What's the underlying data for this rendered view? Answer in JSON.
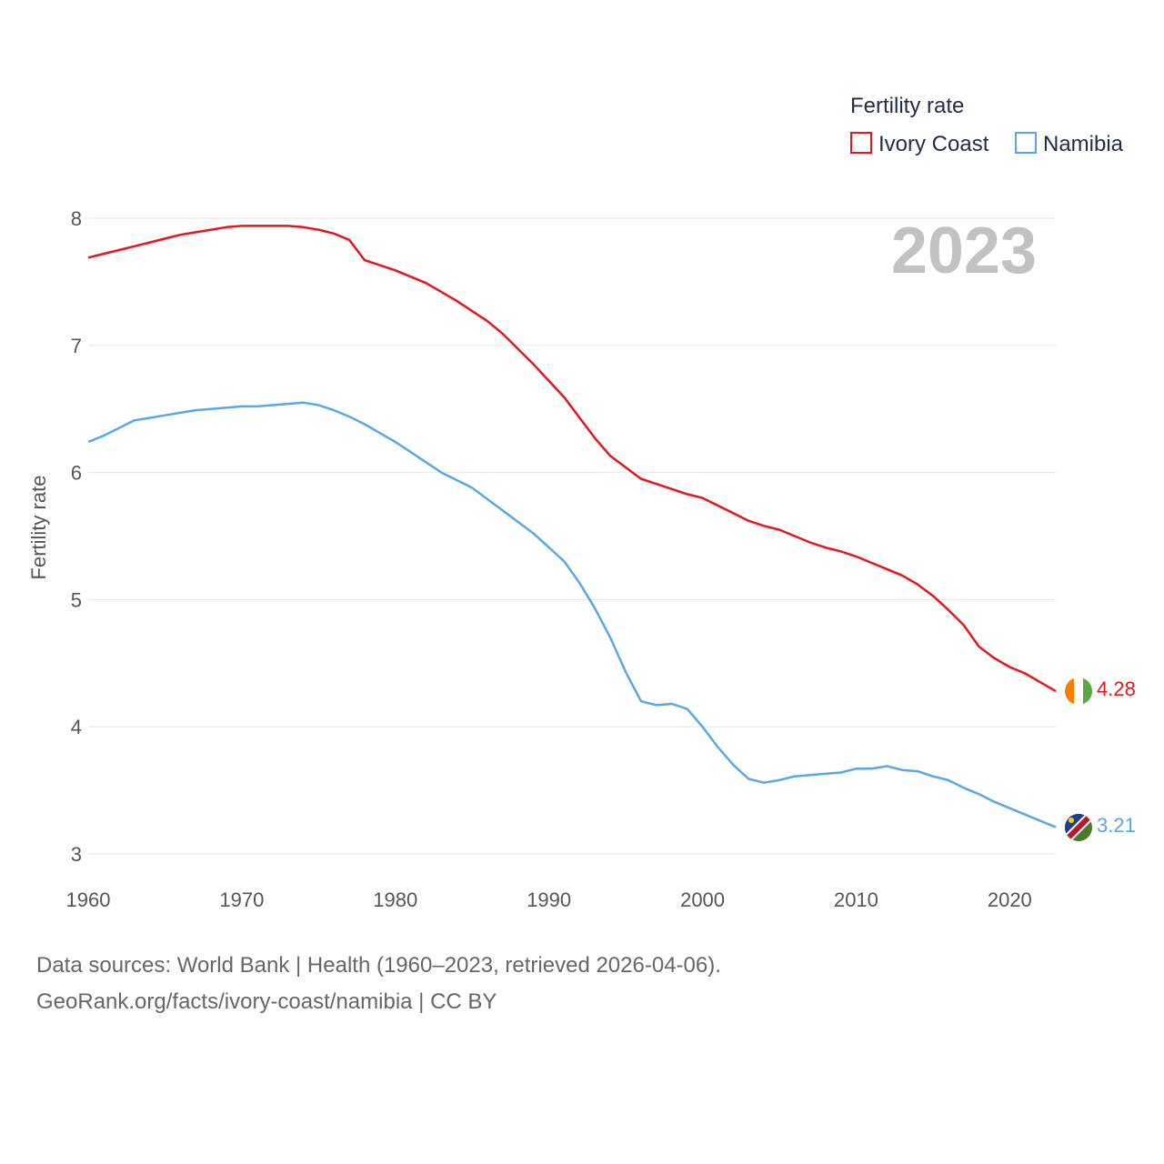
{
  "legend": {
    "title": "Fertility rate",
    "items": [
      {
        "label": "Ivory Coast",
        "color": "#e8161c"
      },
      {
        "label": "Namibia",
        "color": "#5aa7e6"
      }
    ]
  },
  "big_year": "2023",
  "end_labels": {
    "ivory_coast": "4.28",
    "namibia": "3.21"
  },
  "source": {
    "line1": "Data sources: World Bank | Health (1960–2023, retrieved 2026-04-06).",
    "line2": "GeoRank.org/facts/ivory-coast/namibia | CC BY"
  },
  "flags": {
    "ivory_coast": "ivory-coast-flag-icon",
    "namibia": "namibia-flag-icon"
  },
  "chart_data": {
    "type": "line",
    "title": "Fertility rate",
    "xlabel": "",
    "ylabel": "Fertility rate",
    "xlim": [
      1960,
      2023
    ],
    "ylim": [
      3,
      8
    ],
    "x_ticks": [
      1960,
      1970,
      1980,
      1990,
      2000,
      2010,
      2020
    ],
    "y_ticks": [
      3,
      4,
      5,
      6,
      7,
      8
    ],
    "grid": true,
    "legend_position": "top-right",
    "x": [
      1960,
      1961,
      1962,
      1963,
      1964,
      1965,
      1966,
      1967,
      1968,
      1969,
      1970,
      1971,
      1972,
      1973,
      1974,
      1975,
      1976,
      1977,
      1978,
      1979,
      1980,
      1981,
      1982,
      1983,
      1984,
      1985,
      1986,
      1987,
      1988,
      1989,
      1990,
      1991,
      1992,
      1993,
      1994,
      1995,
      1996,
      1997,
      1998,
      1999,
      2000,
      2001,
      2002,
      2003,
      2004,
      2005,
      2006,
      2007,
      2008,
      2009,
      2010,
      2011,
      2012,
      2013,
      2014,
      2015,
      2016,
      2017,
      2018,
      2019,
      2020,
      2021,
      2022,
      2023
    ],
    "series": [
      {
        "name": "Ivory Coast",
        "color": "#e8161c",
        "values": [
          7.69,
          7.72,
          7.75,
          7.78,
          7.81,
          7.84,
          7.87,
          7.89,
          7.91,
          7.93,
          7.94,
          7.94,
          7.94,
          7.94,
          7.93,
          7.91,
          7.88,
          7.83,
          7.67,
          7.63,
          7.59,
          7.54,
          7.49,
          7.42,
          7.35,
          7.27,
          7.19,
          7.09,
          6.97,
          6.85,
          6.72,
          6.59,
          6.43,
          6.27,
          6.13,
          6.04,
          5.95,
          5.91,
          5.87,
          5.83,
          5.8,
          5.74,
          5.68,
          5.62,
          5.58,
          5.55,
          5.5,
          5.45,
          5.41,
          5.38,
          5.34,
          5.29,
          5.24,
          5.19,
          5.12,
          5.03,
          4.92,
          4.8,
          4.63,
          4.54,
          4.47,
          4.42,
          4.35,
          4.28
        ]
      },
      {
        "name": "Namibia",
        "color": "#5aa7e6",
        "values": [
          6.24,
          6.29,
          6.35,
          6.41,
          6.43,
          6.45,
          6.47,
          6.49,
          6.5,
          6.51,
          6.52,
          6.52,
          6.53,
          6.54,
          6.55,
          6.53,
          6.49,
          6.44,
          6.38,
          6.31,
          6.24,
          6.16,
          6.08,
          6.0,
          5.94,
          5.88,
          5.79,
          5.7,
          5.61,
          5.52,
          5.41,
          5.3,
          5.13,
          4.93,
          4.7,
          4.43,
          4.2,
          4.17,
          4.18,
          4.14,
          4.0,
          3.84,
          3.7,
          3.59,
          3.56,
          3.58,
          3.61,
          3.62,
          3.63,
          3.64,
          3.67,
          3.67,
          3.69,
          3.66,
          3.65,
          3.61,
          3.58,
          3.52,
          3.47,
          3.41,
          3.36,
          3.31,
          3.26,
          3.21
        ]
      }
    ]
  }
}
